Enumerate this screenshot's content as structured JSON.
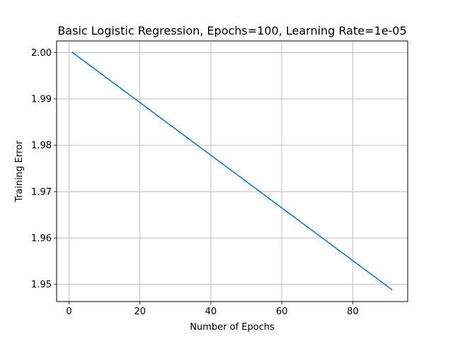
{
  "chart_data": {
    "type": "line",
    "title": "Basic Logistic Regression, Epochs=100, Learning Rate=1e-05",
    "xlabel": "Number of Epochs",
    "ylabel": "Training Error",
    "xlim": [
      -3.5,
      95.5
    ],
    "ylim": [
      1.9463,
      2.0025
    ],
    "xticks": [
      0,
      20,
      40,
      60,
      80
    ],
    "yticks": [
      1.95,
      1.96,
      1.97,
      1.98,
      1.99,
      2.0
    ],
    "xtick_labels": [
      "0",
      "20",
      "40",
      "60",
      "80"
    ],
    "ytick_labels": [
      "1.95",
      "1.96",
      "1.97",
      "1.98",
      "1.99",
      "2.00"
    ],
    "grid": true,
    "series": [
      {
        "color": "#1f77b4",
        "x": [
          1,
          91
        ],
        "y": [
          2.0,
          1.9489
        ]
      }
    ]
  }
}
